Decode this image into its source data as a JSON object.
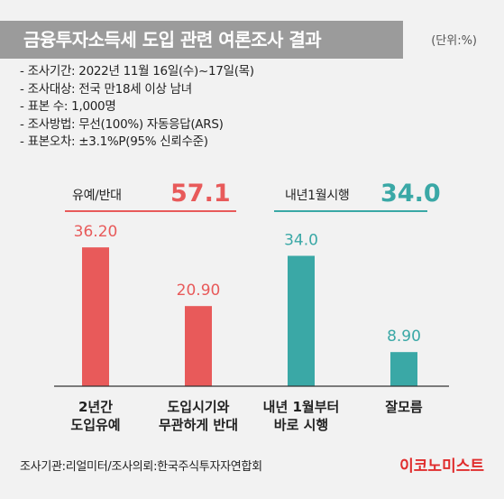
{
  "title": "금융투자소득세 도입 관련 여론조사 결과",
  "unit": "(단위:%)",
  "info": [
    "조사기간: 2022년 11월 16일(수)~17일(목)",
    "조사대상: 전국 만18세 이상 남녀",
    "표본 수: 1,000명",
    "조사방법: 무선(100%) 자동응답(ARS)",
    "표본오차: ±3.1%P(95% 신뢰수준)"
  ],
  "groups": [
    {
      "label": "유예/반대",
      "value": "57.1",
      "color": "#e85a5a"
    },
    {
      "label": "내년1월시행",
      "value": "34.0",
      "color": "#3aa8a6"
    }
  ],
  "chart_data": {
    "type": "bar",
    "categories": [
      "2년간\n도입유예",
      "도입시기와\n무관하게 반대",
      "내년 1월부터\n바로 시행",
      "잘모름"
    ],
    "value_labels": [
      "36.20",
      "20.90",
      "34.0",
      "8.90"
    ],
    "values": [
      36.2,
      20.9,
      34.0,
      8.9
    ],
    "colors": [
      "#e85a5a",
      "#e85a5a",
      "#3aa8a6",
      "#3aa8a6"
    ],
    "title": "",
    "xlabel": "",
    "ylabel": ""
  },
  "footer": {
    "source": "조사기관:리얼미터/조사의뢰:한국주식투자자연합회",
    "brand": "이코노미스트"
  }
}
